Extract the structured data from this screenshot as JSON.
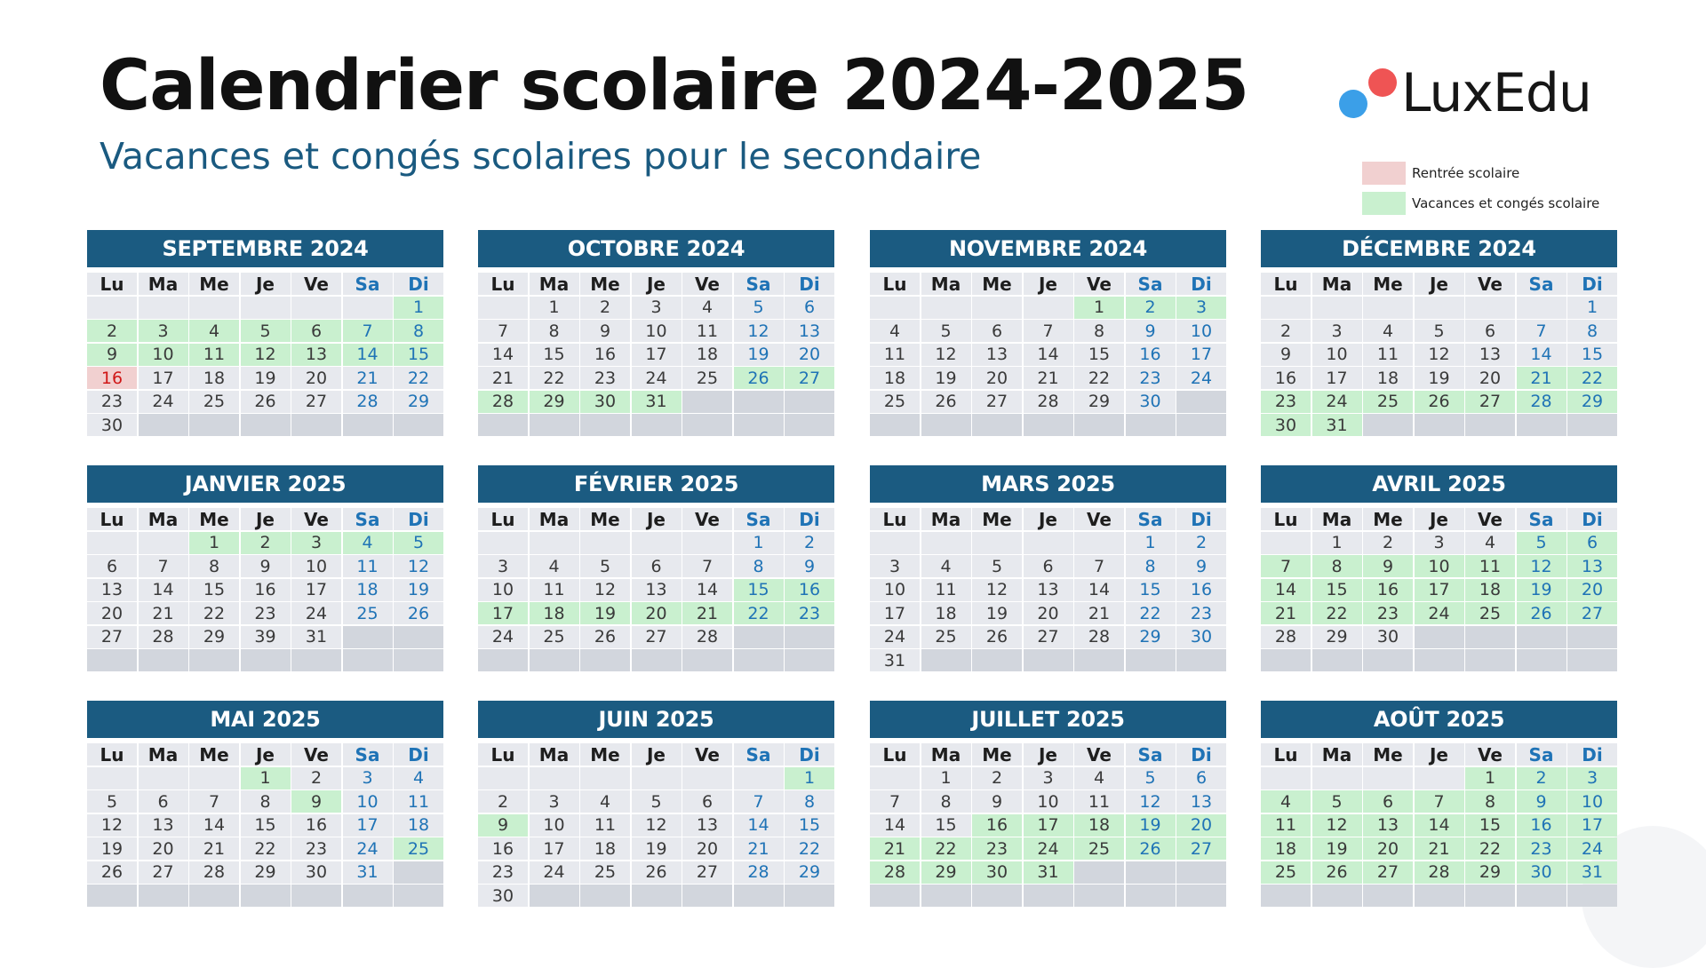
{
  "title": "Calendrier scolaire 2024-2025",
  "subtitle": "Vacances et congés scolaires pour le secondaire",
  "logo": {
    "text": "LuxEdu"
  },
  "legend": [
    {
      "label": "Rentrée scolaire",
      "color": "#f1d0d0"
    },
    {
      "label": "Vacances et congés scolaire",
      "color": "#c9f0cf"
    }
  ],
  "weekdays": [
    "Lu",
    "Ma",
    "Me",
    "Je",
    "Ve",
    "Sa",
    "Di"
  ],
  "months": [
    {
      "name": "SEPTEMBRE 2024",
      "offset": 6,
      "days": 30,
      "rows": 6,
      "vacation": [
        1,
        2,
        3,
        4,
        5,
        6,
        7,
        8,
        9,
        10,
        11,
        12,
        13,
        14,
        15
      ],
      "rentree": [
        16
      ]
    },
    {
      "name": "OCTOBRE 2024",
      "offset": 1,
      "days": 31,
      "rows": 6,
      "vacation": [
        26,
        27,
        28,
        29,
        30,
        31
      ],
      "rentree": []
    },
    {
      "name": "NOVEMBRE 2024",
      "offset": 4,
      "days": 30,
      "rows": 6,
      "vacation": [
        1,
        2,
        3
      ],
      "rentree": []
    },
    {
      "name": "DÉCEMBRE 2024",
      "offset": 6,
      "days": 31,
      "rows": 6,
      "vacation": [
        21,
        22,
        23,
        24,
        25,
        26,
        27,
        28,
        29,
        30,
        31
      ],
      "rentree": []
    },
    {
      "name": "JANVIER 2025",
      "offset": 2,
      "days": 31,
      "rows": 6,
      "vacation": [
        1,
        2,
        3,
        4,
        5
      ],
      "rentree": [],
      "labels": {
        "30": "39"
      }
    },
    {
      "name": "FÉVRIER 2025",
      "offset": 5,
      "days": 28,
      "rows": 6,
      "vacation": [
        15,
        16,
        17,
        18,
        19,
        20,
        21,
        22,
        23
      ],
      "rentree": []
    },
    {
      "name": "MARS 2025",
      "offset": 5,
      "days": 31,
      "rows": 6,
      "vacation": [],
      "rentree": []
    },
    {
      "name": "AVRIL 2025",
      "offset": 1,
      "days": 30,
      "rows": 6,
      "vacation": [
        5,
        6,
        7,
        8,
        9,
        10,
        11,
        12,
        13,
        14,
        15,
        16,
        17,
        18,
        19,
        20,
        21,
        22,
        23,
        24,
        25,
        26,
        27
      ],
      "rentree": []
    },
    {
      "name": "MAI 2025",
      "offset": 3,
      "days": 31,
      "rows": 6,
      "vacation": [
        1,
        9,
        25
      ],
      "rentree": []
    },
    {
      "name": "JUIN 2025",
      "offset": 6,
      "days": 30,
      "rows": 6,
      "vacation": [
        1,
        9
      ],
      "rentree": []
    },
    {
      "name": "JUILLET 2025",
      "offset": 1,
      "days": 31,
      "rows": 6,
      "vacation": [
        16,
        17,
        18,
        19,
        20,
        21,
        22,
        23,
        24,
        25,
        26,
        27,
        28,
        29,
        30,
        31
      ],
      "rentree": []
    },
    {
      "name": "AOÛT 2025",
      "offset": 4,
      "days": 31,
      "rows": 6,
      "vacation": [
        1,
        2,
        3,
        4,
        5,
        6,
        7,
        8,
        9,
        10,
        11,
        12,
        13,
        14,
        15,
        16,
        17,
        18,
        19,
        20,
        21,
        22,
        23,
        24,
        25,
        26,
        27,
        28,
        29,
        30,
        31
      ],
      "rentree": []
    }
  ]
}
